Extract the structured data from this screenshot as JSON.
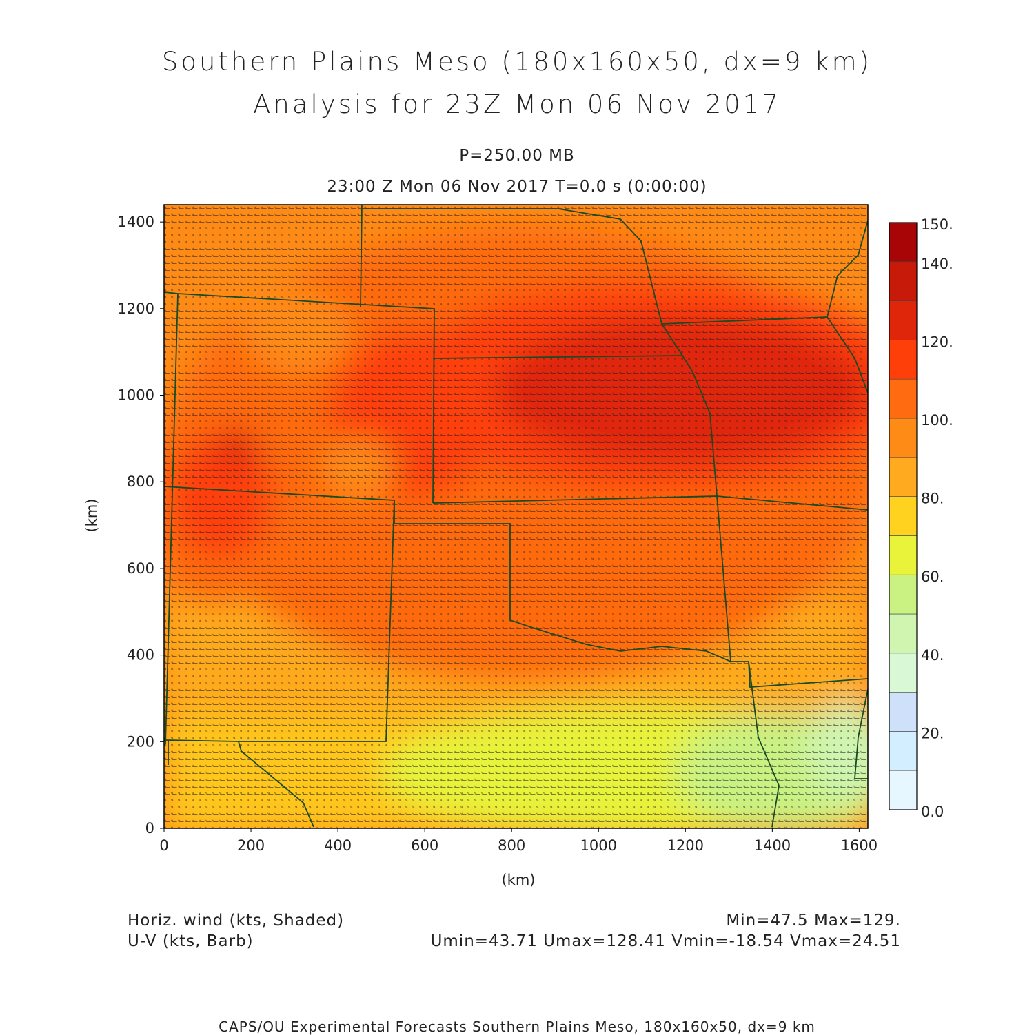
{
  "header": {
    "title_line1": "Southern Plains Meso (180x160x50, dx=9 km)",
    "title_line2": "Analysis for 23Z Mon 06 Nov 2017",
    "level": "P=250.00 MB",
    "time": "23:00 Z Mon 06 Nov 2017    T=0.0 s (0:00:00)"
  },
  "map": {
    "x_axis": {
      "label": "(km)",
      "range": [
        0,
        1620
      ],
      "ticks": [
        "0",
        "200",
        "400",
        "600",
        "800",
        "1000",
        "1200",
        "1400",
        "1600"
      ]
    },
    "y_axis": {
      "label": "(km)",
      "range": [
        0,
        1440
      ],
      "ticks": [
        "0",
        "200",
        "400",
        "600",
        "800",
        "1000",
        "1200",
        "1400"
      ]
    },
    "field": "Horiz. wind speed shaded, wind barbs overlaid",
    "border_color": "#1a4a22"
  },
  "colorbar": {
    "labels": [
      "150.",
      "140.",
      "120.",
      "100.",
      "80.",
      "60.",
      "40.",
      "20.",
      "0.0"
    ],
    "label_values": [
      150,
      140,
      120,
      100,
      80,
      60,
      40,
      20,
      0
    ],
    "bins": [
      {
        "from": 0,
        "to": 10,
        "color": "#e6f7ff"
      },
      {
        "from": 10,
        "to": 20,
        "color": "#d2eeff"
      },
      {
        "from": 20,
        "to": 30,
        "color": "#cfe0fa"
      },
      {
        "from": 30,
        "to": 40,
        "color": "#d8f8d6"
      },
      {
        "from": 40,
        "to": 50,
        "color": "#cff5b0"
      },
      {
        "from": 50,
        "to": 60,
        "color": "#c9f283"
      },
      {
        "from": 60,
        "to": 70,
        "color": "#e8f33a"
      },
      {
        "from": 70,
        "to": 80,
        "color": "#ffd21f"
      },
      {
        "from": 80,
        "to": 90,
        "color": "#ffaa1f"
      },
      {
        "from": 90,
        "to": 100,
        "color": "#ff8b17"
      },
      {
        "from": 100,
        "to": 110,
        "color": "#ff6b10"
      },
      {
        "from": 110,
        "to": 120,
        "color": "#ff3f0a"
      },
      {
        "from": 120,
        "to": 130,
        "color": "#e0260a"
      },
      {
        "from": 130,
        "to": 140,
        "color": "#c81a08"
      },
      {
        "from": 140,
        "to": 150,
        "color": "#a80606"
      }
    ]
  },
  "footer_info": {
    "field_label": "Horiz. wind (kts, Shaded)",
    "overlay_label": "U-V (kts, Barb)",
    "minmax": "Min=47.5 Max=129.",
    "uv_stats": "Umin=43.71 Umax=128.41 Vmin=-18.54 Vmax=24.51"
  },
  "credit": "CAPS/OU Experimental Forecasts  Southern Plains Meso, 180x160x50, dx=9 km"
}
